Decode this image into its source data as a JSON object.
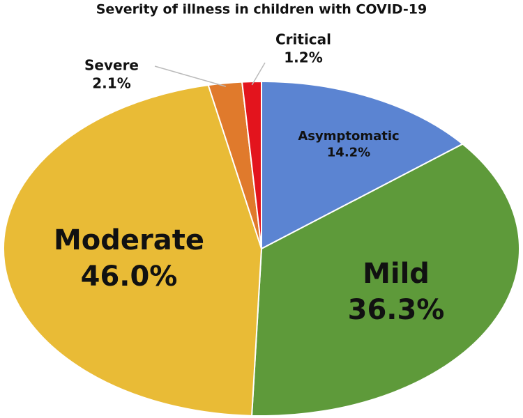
{
  "chart_data": {
    "type": "pie",
    "title": "Severity of illness in children with COVID-19",
    "categories": [
      "Asymptomatic",
      "Mild",
      "Moderate",
      "Severe",
      "Critical"
    ],
    "values": [
      14.2,
      36.3,
      46.0,
      2.1,
      1.2
    ],
    "value_labels": [
      "14.2%",
      "36.3%",
      "46.0%",
      "2.1%",
      "1.2%"
    ],
    "colors": [
      "#5b84d2",
      "#5e9a3a",
      "#e9bb36",
      "#e07a2c",
      "#e3141d"
    ]
  }
}
